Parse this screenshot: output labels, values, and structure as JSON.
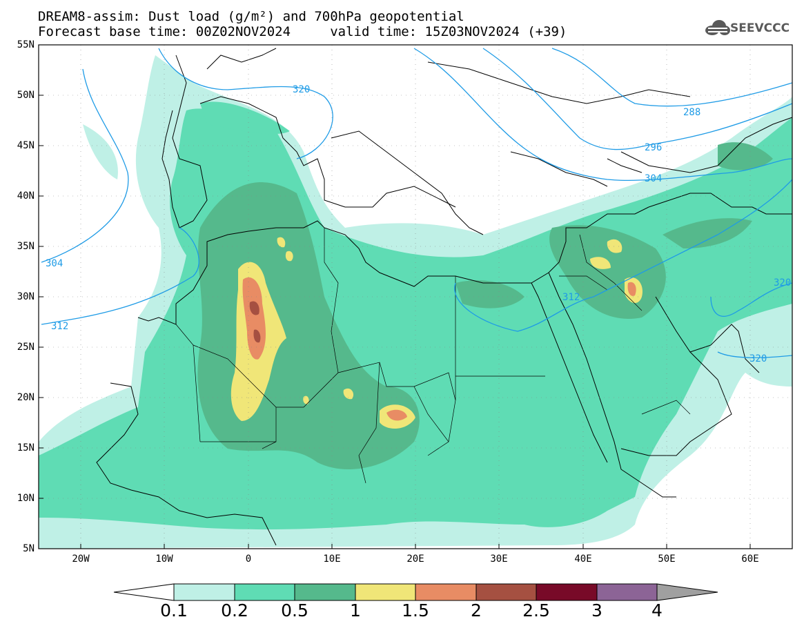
{
  "title": {
    "line1": "DREAM8-assim: Dust load (g/m²) and 700hPa geopotential",
    "line2": "Forecast base time: 00Z02NOV2024     valid time: 15Z03NOV2024 (+39)"
  },
  "logo": {
    "text": "SEEVCCC",
    "icon": "cloud-icon"
  },
  "axes": {
    "lat_labels": [
      "55N",
      "50N",
      "45N",
      "40N",
      "35N",
      "30N",
      "25N",
      "20N",
      "15N",
      "10N",
      "5N"
    ],
    "lon_labels": [
      "20W",
      "10W",
      "0",
      "10E",
      "20E",
      "30E",
      "40E",
      "50E",
      "60E"
    ],
    "lat_range": [
      5,
      55
    ],
    "lon_range": [
      -25,
      65
    ]
  },
  "colorbar": {
    "levels": [
      "0.1",
      "0.2",
      "0.5",
      "1",
      "1.5",
      "2",
      "2.5",
      "3",
      "4"
    ],
    "colors": [
      "#bff0e6",
      "#5fdcb4",
      "#55b98c",
      "#f0e678",
      "#e88c64",
      "#a55041",
      "#780a28",
      "#8c6496",
      "#a0a0a0"
    ]
  },
  "contours": {
    "labels": [
      "320",
      "288",
      "296",
      "304",
      "304",
      "312",
      "312",
      "320",
      "320"
    ],
    "color": "#1e9be6"
  }
}
